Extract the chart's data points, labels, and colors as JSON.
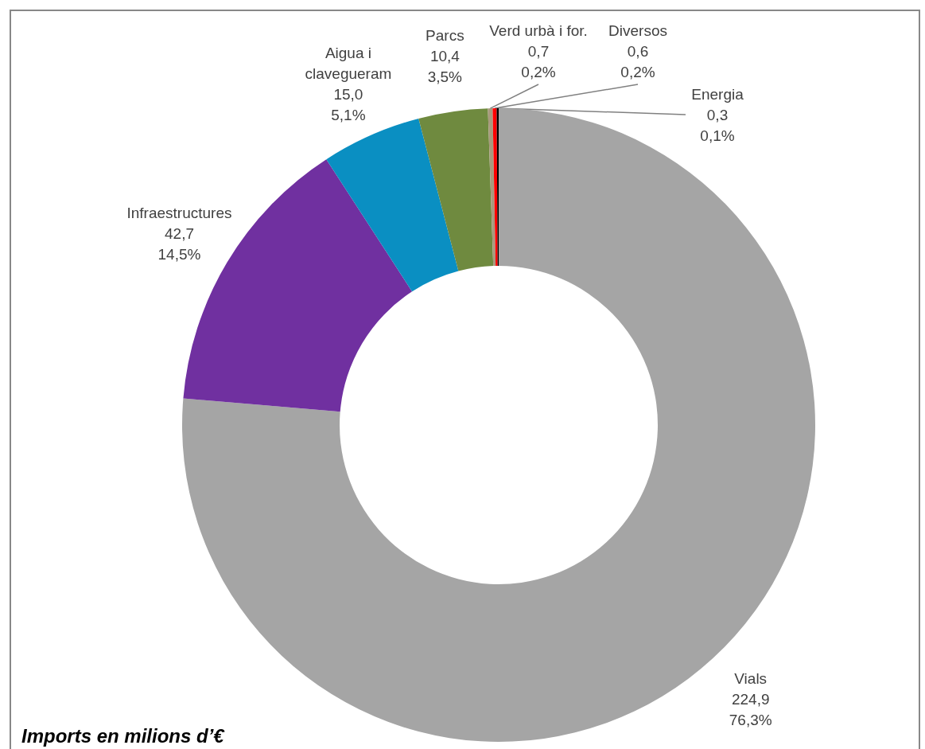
{
  "chart_data": {
    "type": "donut",
    "title": "Imports en milions d’€",
    "categories": [
      "Vials",
      "Infraestructures",
      "Aigua i\nclavegueram",
      "Parcs",
      "Verd urbà i for.",
      "Diversos",
      "Energia"
    ],
    "values": [
      224.9,
      42.7,
      15.0,
      10.4,
      0.7,
      0.6,
      0.3
    ],
    "value_labels": [
      "224,9\n76,3%",
      "42,7\n14,5%",
      "15,0\n5,1%",
      "10,4\n3,5%",
      "0,7\n0,2%",
      "0,6\n0,2%",
      "0,3\n0,1%"
    ],
    "colors": [
      "#a5a5a5",
      "#7030a0",
      "#0a8fc2",
      "#6f8a3f",
      "#a89a7e",
      "#ff0000",
      "#000000"
    ],
    "legend": false
  }
}
